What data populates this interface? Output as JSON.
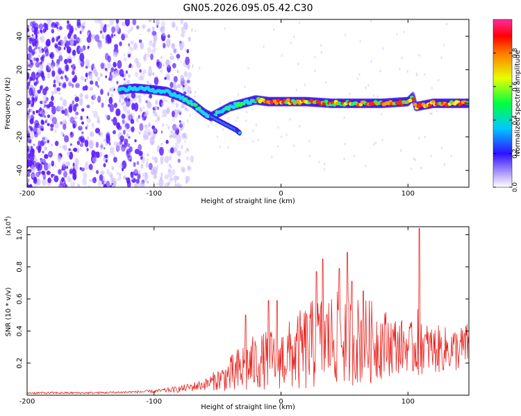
{
  "title": "GN05.2026.095.05.42.C30",
  "colors": {
    "snr_line": "#e8201c",
    "dot_blue": "#5a1dff",
    "dot_light": "#c9b8ff",
    "frame": "#000000"
  },
  "chart_data": [
    {
      "type": "heatmap",
      "id": "spectrogram",
      "xlabel": "Height of straight line (km)",
      "ylabel": "Frequency (Hz)",
      "xlim": [
        -200,
        148
      ],
      "ylim": [
        -50,
        50
      ],
      "xticks": [
        "-200",
        "-100",
        "0",
        "100"
      ],
      "xtick_values": [
        -200,
        -100,
        0,
        100
      ],
      "yticks": [
        "40",
        "20",
        "0",
        "-20",
        "-40"
      ],
      "ytick_values": [
        40,
        20,
        0,
        -20,
        -40
      ],
      "ridge": {
        "x": [
          -127,
          -115,
          -100,
          -90,
          -80,
          -70,
          -60,
          -55,
          -50,
          -45,
          -40,
          -30,
          -20,
          -10,
          0,
          10,
          20,
          40,
          60,
          80,
          100,
          104,
          106,
          120,
          148
        ],
        "y": [
          8,
          9,
          8,
          7,
          4,
          0,
          -6,
          -8,
          -6,
          -4,
          -2,
          0,
          2,
          1,
          1,
          1,
          1,
          0,
          0,
          0,
          1,
          4,
          -2,
          0,
          0
        ],
        "branch_x": [
          -55,
          -50,
          -45,
          -40,
          -35,
          -32
        ],
        "branch_y": [
          -8,
          -10,
          -12,
          -14,
          -16,
          -18
        ]
      },
      "colorbar": {
        "label": "Normalized spectral amplitude",
        "range": [
          0.0,
          1.0
        ],
        "ticks": [
          "0.0",
          "0.2",
          "0.4",
          "0.6",
          "0.8"
        ],
        "tick_values": [
          0.0,
          0.2,
          0.4,
          0.6,
          0.8
        ]
      }
    },
    {
      "type": "line",
      "id": "snr",
      "xlabel": "Height of straight line (km)",
      "ylabel": "SNR (10 * v/v)",
      "scale_note": "(x10",
      "scale_exp": "4",
      "scale_close": ")",
      "xlim": [
        -200,
        148
      ],
      "ylim": [
        0,
        1.05
      ],
      "xticks": [
        "-200",
        "-100",
        "0",
        "100"
      ],
      "xtick_values": [
        -200,
        -100,
        0,
        100
      ],
      "yticks": [
        "1.0",
        "0.8",
        "0.6",
        "0.4",
        "0.2"
      ],
      "ytick_values": [
        1.0,
        0.8,
        0.6,
        0.4,
        0.2
      ],
      "envelope": {
        "x": [
          -200,
          -150,
          -120,
          -100,
          -80,
          -60,
          -45,
          -35,
          -30,
          -25,
          -20,
          -10,
          0,
          10,
          20,
          30,
          40,
          50,
          60,
          70,
          80,
          90,
          100,
          105,
          108,
          112,
          120,
          130,
          140,
          148
        ],
        "base": [
          0.015,
          0.015,
          0.02,
          0.025,
          0.04,
          0.07,
          0.12,
          0.15,
          0.18,
          0.2,
          0.22,
          0.24,
          0.25,
          0.28,
          0.32,
          0.36,
          0.38,
          0.38,
          0.37,
          0.36,
          0.35,
          0.33,
          0.32,
          0.3,
          0.5,
          0.32,
          0.3,
          0.3,
          0.3,
          0.33
        ],
        "amp": [
          0.01,
          0.01,
          0.01,
          0.015,
          0.03,
          0.05,
          0.12,
          0.22,
          0.25,
          0.25,
          0.25,
          0.26,
          0.28,
          0.33,
          0.4,
          0.42,
          0.42,
          0.42,
          0.4,
          0.38,
          0.32,
          0.26,
          0.22,
          0.25,
          0.55,
          0.22,
          0.22,
          0.2,
          0.2,
          0.2
        ]
      },
      "peaks": [
        {
          "x": 109,
          "y": 1.04
        },
        {
          "x": 52,
          "y": 0.89
        },
        {
          "x": 33,
          "y": 0.85
        },
        {
          "x": 46,
          "y": 0.79
        },
        {
          "x": 28,
          "y": 0.77
        },
        {
          "x": 56,
          "y": 0.71
        },
        {
          "x": -28,
          "y": 0.5
        },
        {
          "x": -3,
          "y": 0.59
        },
        {
          "x": -10,
          "y": 0.59
        },
        {
          "x": 65,
          "y": 0.65
        }
      ]
    }
  ]
}
